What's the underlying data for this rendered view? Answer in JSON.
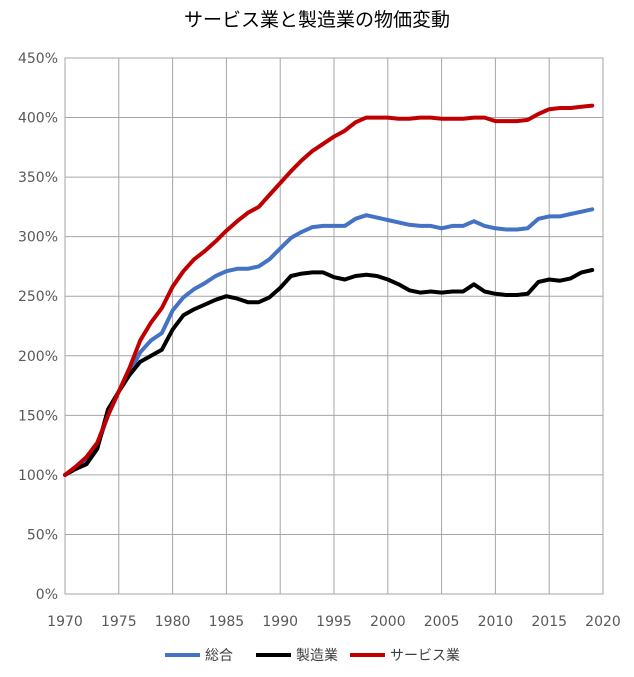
{
  "chart_data": {
    "type": "line",
    "title": "サービス業と製造業の物価変動",
    "xlabel": "",
    "ylabel": "",
    "xlim": [
      1970,
      2020
    ],
    "ylim": [
      0,
      450
    ],
    "x_ticks": [
      "1970",
      "1975",
      "1980",
      "1985",
      "1990",
      "1995",
      "2000",
      "2005",
      "2010",
      "2015",
      "2020"
    ],
    "y_ticks": [
      "0%",
      "50%",
      "100%",
      "150%",
      "200%",
      "250%",
      "300%",
      "350%",
      "400%",
      "450%"
    ],
    "grid": true,
    "legend_position": "bottom",
    "x": [
      1970,
      1971,
      1972,
      1973,
      1974,
      1975,
      1976,
      1977,
      1978,
      1979,
      1980,
      1981,
      1982,
      1983,
      1984,
      1985,
      1986,
      1987,
      1988,
      1989,
      1990,
      1991,
      1992,
      1993,
      1994,
      1995,
      1996,
      1997,
      1998,
      1999,
      2000,
      2001,
      2002,
      2003,
      2004,
      2005,
      2006,
      2007,
      2008,
      2009,
      2010,
      2011,
      2012,
      2013,
      2014,
      2015,
      2016,
      2017,
      2018,
      2019
    ],
    "series": [
      {
        "name": "総合",
        "color": "#4472c4",
        "values": [
          100,
          106,
          111,
          124,
          150,
          170,
          186,
          203,
          213,
          219,
          238,
          249,
          256,
          261,
          267,
          271,
          273,
          273,
          275,
          281,
          290,
          299,
          304,
          308,
          309,
          309,
          309,
          315,
          318,
          316,
          314,
          312,
          310,
          309,
          309,
          307,
          309,
          309,
          313,
          309,
          307,
          306,
          306,
          307,
          315,
          317,
          317,
          319,
          321,
          323
        ]
      },
      {
        "name": "製造業",
        "color": "#000000",
        "values": [
          100,
          105,
          109,
          122,
          155,
          170,
          184,
          195,
          200,
          205,
          222,
          234,
          239,
          243,
          247,
          250,
          248,
          245,
          245,
          249,
          257,
          267,
          269,
          270,
          270,
          266,
          264,
          267,
          268,
          267,
          264,
          260,
          255,
          253,
          254,
          253,
          254,
          254,
          260,
          254,
          252,
          251,
          251,
          252,
          262,
          264,
          263,
          265,
          270,
          272
        ]
      },
      {
        "name": "サービス業",
        "color": "#c00000",
        "values": [
          100,
          107,
          115,
          127,
          150,
          170,
          190,
          213,
          228,
          240,
          258,
          271,
          281,
          288,
          296,
          305,
          313,
          320,
          325,
          335,
          345,
          355,
          364,
          372,
          378,
          384,
          389,
          396,
          400,
          400,
          400,
          399,
          399,
          400,
          400,
          399,
          399,
          399,
          400,
          400,
          397,
          397,
          397,
          398,
          403,
          407,
          408,
          408,
          409,
          410
        ]
      }
    ]
  }
}
